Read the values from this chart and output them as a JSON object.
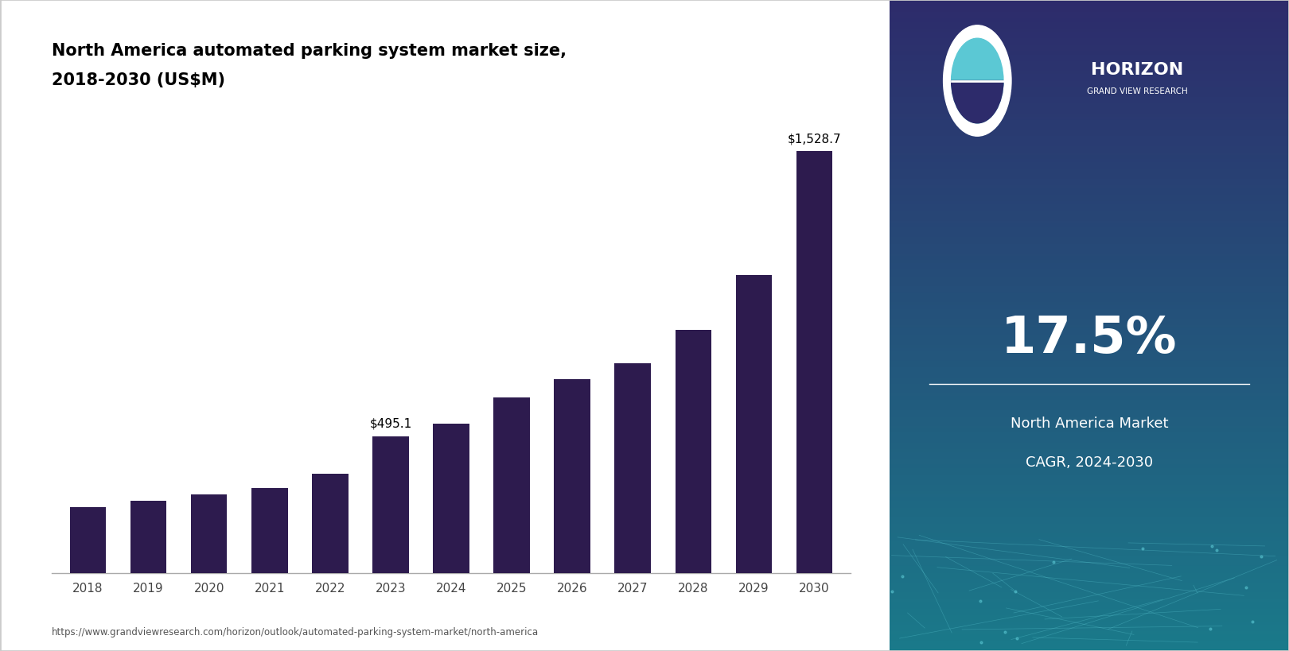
{
  "title_line1": "North America automated parking system market size,",
  "title_line2": "2018-2030 (US$M)",
  "years": [
    2018,
    2019,
    2020,
    2021,
    2022,
    2023,
    2024,
    2025,
    2026,
    2027,
    2028,
    2029,
    2030
  ],
  "values": [
    238.0,
    262.0,
    283.0,
    308.0,
    358.0,
    495.1,
    541.0,
    635.0,
    700.0,
    760.0,
    880.0,
    1080.0,
    1528.7
  ],
  "bar_color": "#2d1b4e",
  "label_2023": "$495.1",
  "label_2030": "$1,528.7",
  "cagr_value": "17.5%",
  "cagr_label1": "North America Market",
  "cagr_label2": "CAGR, 2024-2030",
  "url_text": "https://www.grandviewresearch.com/horizon/outlook/automated-parking-system-market/north-america",
  "bg_color": "#ffffff",
  "panel_color_top": "#2d2b6b",
  "panel_color_bottom": "#1a7a8a",
  "ylim": [
    0,
    1700
  ]
}
